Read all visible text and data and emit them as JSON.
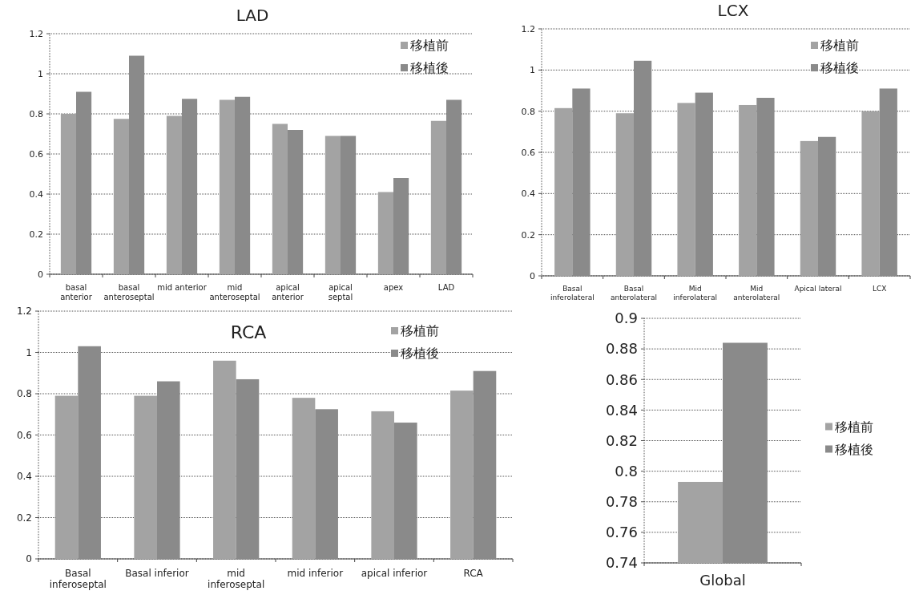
{
  "chart_data": [
    {
      "type": "bar",
      "title": "LAD",
      "categories": [
        "basal anterior",
        "basal anteroseptal",
        "mid anterior",
        "mid anteroseptal",
        "apical anterior",
        "apical septal",
        "apex",
        "LAD"
      ],
      "series": [
        {
          "name": "移植前",
          "color": "#a3a3a3",
          "values": [
            0.8,
            0.775,
            0.79,
            0.87,
            0.75,
            0.69,
            0.41,
            0.765
          ]
        },
        {
          "name": "移植後",
          "color": "#8a8a8a",
          "values": [
            0.91,
            1.09,
            0.875,
            0.885,
            0.72,
            0.69,
            0.48,
            0.87
          ]
        }
      ],
      "ylim": [
        0,
        1.2
      ],
      "yticks": [
        0,
        0.2,
        0.4,
        0.6,
        0.8,
        1,
        1.2
      ],
      "grid": "y",
      "legend": "top right"
    },
    {
      "type": "bar",
      "title": "LCX",
      "categories": [
        "Basal inferolateral",
        "Basal anterolateral",
        "Mid inferolateral",
        "Mid anterolateral",
        "Apical lateral",
        "LCX"
      ],
      "series": [
        {
          "name": "移植前",
          "color": "#a3a3a3",
          "values": [
            0.815,
            0.79,
            0.84,
            0.83,
            0.655,
            0.8
          ]
        },
        {
          "name": "移植後",
          "color": "#8a8a8a",
          "values": [
            0.91,
            1.045,
            0.89,
            0.865,
            0.675,
            0.91
          ]
        }
      ],
      "ylim": [
        0,
        1.2
      ],
      "yticks": [
        0,
        0.2,
        0.4,
        0.6,
        0.8,
        1,
        1.2
      ],
      "grid": "y",
      "legend": "top right"
    },
    {
      "type": "bar",
      "title": "RCA",
      "categories": [
        "Basal inferoseptal",
        "Basal inferior",
        "mid inferoseptal",
        "mid inferior",
        "apical inferior",
        "RCA"
      ],
      "series": [
        {
          "name": "移植前",
          "color": "#a3a3a3",
          "values": [
            0.79,
            0.79,
            0.96,
            0.78,
            0.715,
            0.815
          ]
        },
        {
          "name": "移植後",
          "color": "#8a8a8a",
          "values": [
            1.03,
            0.86,
            0.87,
            0.725,
            0.66,
            0.91
          ]
        }
      ],
      "ylim": [
        0,
        1.2
      ],
      "yticks": [
        0,
        0.2,
        0.4,
        0.6,
        0.8,
        1,
        1.2
      ],
      "grid": "y",
      "legend": "top right"
    },
    {
      "type": "bar",
      "categories": [
        "Global"
      ],
      "series": [
        {
          "name": "移植前",
          "color": "#a3a3a3",
          "values": [
            0.793
          ]
        },
        {
          "name": "移植後",
          "color": "#8a8a8a",
          "values": [
            0.884
          ]
        }
      ],
      "ylim": [
        0.74,
        0.9
      ],
      "yticks": [
        0.74,
        0.76,
        0.78,
        0.8,
        0.82,
        0.84,
        0.86,
        0.88,
        0.9
      ],
      "grid": "y",
      "legend": "right"
    }
  ]
}
